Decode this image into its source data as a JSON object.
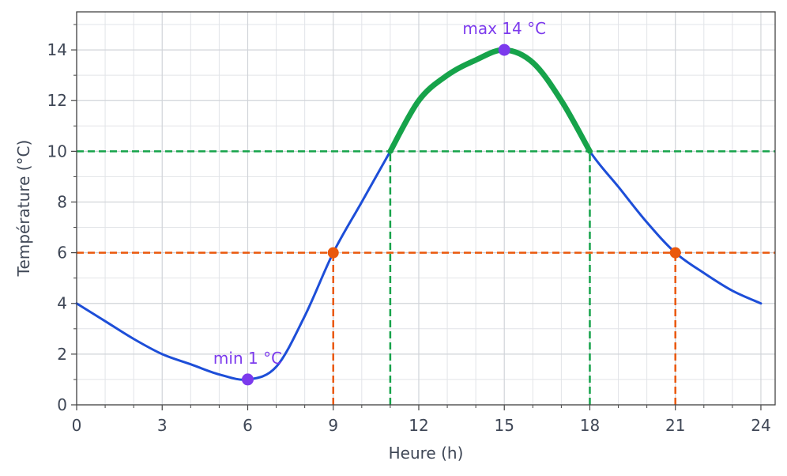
{
  "chart_data": {
    "type": "line",
    "xlabel": "Heure (h)",
    "ylabel": "Température (°C)",
    "x": [
      0,
      1,
      2,
      3,
      4,
      5,
      6,
      7,
      8,
      9,
      10,
      11,
      12,
      13,
      14,
      15,
      16,
      17,
      18,
      19,
      20,
      21,
      22,
      23,
      24
    ],
    "series": [
      {
        "color": "#1d4ed8",
        "linewidth": 3,
        "values": [
          4,
          3.3,
          2.6,
          2.0,
          1.6,
          1.2,
          1,
          1.5,
          3.5,
          6,
          8,
          10,
          12,
          13,
          13.6,
          14,
          13.5,
          12,
          10,
          8.6,
          7.2,
          6,
          5.2,
          4.5,
          4
        ]
      },
      {
        "color": "#16a34a",
        "linewidth": 7,
        "values": [
          null,
          null,
          null,
          null,
          null,
          null,
          null,
          null,
          null,
          null,
          null,
          10,
          12,
          13,
          13.6,
          14,
          13.5,
          12,
          10,
          null,
          null,
          null,
          null,
          null,
          null
        ]
      }
    ],
    "hlines": [
      {
        "value": 10,
        "color": "#16a34a"
      },
      {
        "value": 6,
        "color": "#ea580c"
      }
    ],
    "vlines": [
      {
        "x": 11,
        "y": 10,
        "color": "#16a34a"
      },
      {
        "x": 18,
        "y": 10,
        "color": "#16a34a"
      },
      {
        "x": 9,
        "y": 6,
        "color": "#ea580c"
      },
      {
        "x": 21,
        "y": 6,
        "color": "#ea580c"
      }
    ],
    "points": [
      {
        "x": 9,
        "y": 6,
        "color": "#ea580c"
      },
      {
        "x": 21,
        "y": 6,
        "color": "#ea580c"
      }
    ],
    "annotations": [
      {
        "text": "min 1 °C",
        "x": 6,
        "y": 1,
        "color": "#7c3aed"
      },
      {
        "text": "max 14 °C",
        "x": 15,
        "y": 14,
        "color": "#7c3aed"
      }
    ],
    "xlim": [
      0,
      24.5
    ],
    "ylim": [
      0,
      15.5
    ],
    "xticks": [
      0,
      3,
      6,
      9,
      12,
      15,
      18,
      21,
      24
    ],
    "yticks": [
      0,
      2,
      4,
      6,
      8,
      10,
      12,
      14
    ],
    "xminorticks": [
      1,
      2,
      4,
      5,
      7,
      8,
      10,
      11,
      13,
      14,
      16,
      17,
      19,
      20,
      22,
      23
    ],
    "yminorticks": [
      1,
      3,
      5,
      7,
      9,
      11,
      13,
      15
    ],
    "grid": true
  }
}
